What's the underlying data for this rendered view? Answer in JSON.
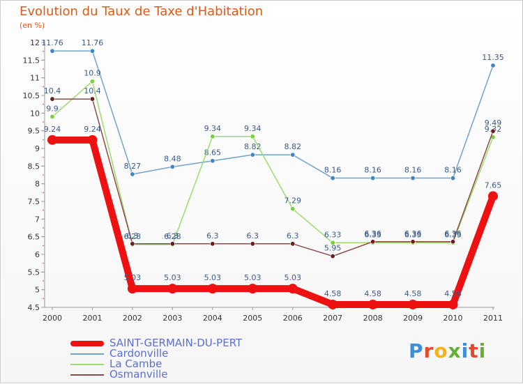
{
  "header": {
    "title": "Evolution du Taux de Taxe d'Habitation",
    "unit": "(en %)"
  },
  "chart_data": {
    "type": "line",
    "x": [
      "2000",
      "2001",
      "2002",
      "2003",
      "2004",
      "2005",
      "2006",
      "2007",
      "2008",
      "2009",
      "2010",
      "2011"
    ],
    "ylim": [
      4.5,
      12
    ],
    "yticks": [
      4.5,
      5,
      5.5,
      6,
      6.5,
      7,
      7.5,
      8,
      8.5,
      9,
      9.5,
      10,
      10.5,
      11,
      11.5,
      12
    ],
    "grid": false,
    "legend_position": "bottom-left",
    "series": [
      {
        "name": "Cardonville",
        "color": "#6fa3cc",
        "marker": "#3f86c4",
        "values": [
          11.76,
          11.76,
          8.27,
          8.48,
          8.65,
          8.82,
          8.82,
          8.16,
          8.16,
          8.16,
          8.16,
          11.35
        ],
        "labels": [
          "11.76",
          "11.76",
          "8.27",
          "8.48",
          "8.65",
          "8.82",
          "8.82",
          "8.16",
          "8.16",
          "8.16",
          "8.16",
          "11.35"
        ]
      },
      {
        "name": "La Cambe",
        "color": "#9bdc6e",
        "marker": "#7ccf3c",
        "values": [
          9.9,
          10.9,
          6.28,
          6.28,
          9.34,
          9.34,
          7.29,
          6.33,
          6.33,
          6.33,
          6.33,
          9.32
        ],
        "labels": [
          "9.9",
          "10.9",
          "6.28",
          "6.28",
          "9.34",
          "9.34",
          "7.29",
          "6.33",
          "6.33",
          "6.33",
          "6.33",
          "9.32"
        ]
      },
      {
        "name": "Osmanville",
        "color": "#8a4b4b",
        "marker": "#6a1f1f",
        "values": [
          10.4,
          10.4,
          6.3,
          6.3,
          6.3,
          6.3,
          6.3,
          5.95,
          6.36,
          6.36,
          6.36,
          9.49
        ],
        "labels": [
          "10.4",
          "10.4",
          "6.3",
          "6.3",
          "6.3",
          "6.3",
          "6.3",
          "5.95",
          "6.36",
          "6.36",
          "6.36",
          "9.49"
        ]
      },
      {
        "name": "SAINT-GERMAIN-DU-PERT",
        "color": "#ee1111",
        "marker": "#ee1111",
        "thick": true,
        "values": [
          9.24,
          9.24,
          5.03,
          5.03,
          5.03,
          5.03,
          5.03,
          4.58,
          4.58,
          4.58,
          4.58,
          7.65
        ],
        "labels": [
          "9.24",
          "9.24",
          "5.03",
          "5.03",
          "5.03",
          "5.03",
          "5.03",
          "4.58",
          "4.58",
          "4.58",
          "4.58",
          "7.65"
        ]
      }
    ]
  },
  "legend": {
    "items": [
      {
        "label": "SAINT-GERMAIN-DU-PERT",
        "color": "#ee1111",
        "thick": true
      },
      {
        "label": "Cardonville",
        "color": "#6fa3cc"
      },
      {
        "label": "La Cambe",
        "color": "#9bdc6e"
      },
      {
        "label": "Osmanville",
        "color": "#8a4b4b"
      }
    ]
  },
  "logo": {
    "text": "Proxiti"
  }
}
